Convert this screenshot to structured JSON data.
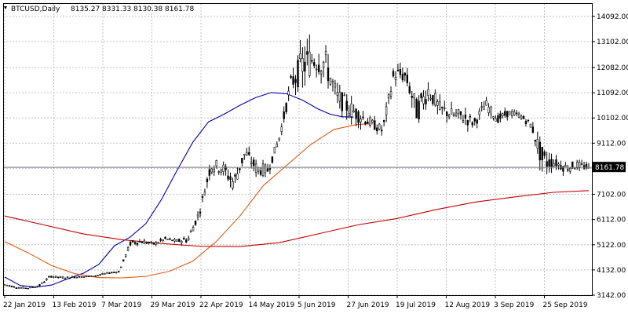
{
  "header": {
    "symbol": "BTCUSD,Daily",
    "open": "8135.27",
    "high": "8331.33",
    "low": "8130.38",
    "close": "8161.78"
  },
  "price_label": "8161.78",
  "colors": {
    "bull": "#000000",
    "bear": "#000000",
    "ma_fast": "#0000aa",
    "ma_mid": "#e05a14",
    "ma_slow": "#c00000",
    "grid": "#c0c0c0",
    "frame": "#000000"
  },
  "chart_data": {
    "type": "candlestick",
    "ylim": [
      3142,
      14580
    ],
    "x_tick_labels": [
      "22 Jan 2019",
      "13 Feb 2019",
      "7 Mar 2019",
      "29 Mar 2019",
      "22 Apr 2019",
      "14 May 2019",
      "5 Jun 2019",
      "27 Jun 2019",
      "19 Jul 2019",
      "12 Aug 2019",
      "3 Sep 2019",
      "25 Sep 2019"
    ],
    "y_tick_labels": [
      "14092.00",
      "13102.00",
      "12082.00",
      "11092.00",
      "10102.00",
      "9112.00",
      "8122.00",
      "7102.00",
      "6112.00",
      "5122.00",
      "4132.00",
      "3142.00"
    ],
    "y_ticks": [
      14092,
      13102,
      12082,
      11092,
      10102,
      9112,
      8122,
      7102,
      6112,
      5122,
      4132,
      3142
    ],
    "current_price": 8161.78,
    "ohlc_anchors": [
      [
        3570,
        3620,
        3450,
        3560
      ],
      [
        3520,
        3560,
        3430,
        3450
      ],
      [
        3460,
        3520,
        3380,
        3420
      ],
      [
        3430,
        3560,
        3400,
        3510
      ],
      [
        3830,
        3960,
        3760,
        3890
      ],
      [
        3860,
        3960,
        3790,
        3830
      ],
      [
        3800,
        3880,
        3740,
        3850
      ],
      [
        3830,
        3900,
        3790,
        3870
      ],
      [
        3880,
        3960,
        3840,
        3910
      ],
      [
        3960,
        4040,
        3910,
        4010
      ],
      [
        4000,
        4110,
        3960,
        4070
      ],
      [
        5100,
        5350,
        4900,
        5200
      ],
      [
        5150,
        5420,
        4980,
        5250
      ],
      [
        5050,
        5250,
        4950,
        5150
      ],
      [
        5220,
        5450,
        5100,
        5350
      ],
      [
        5200,
        5380,
        5080,
        5260
      ],
      [
        5700,
        5850,
        5200,
        5330
      ],
      [
        6150,
        6480,
        5850,
        6380
      ],
      [
        7650,
        8350,
        7150,
        8250
      ],
      [
        7800,
        8480,
        7350,
        8150
      ],
      [
        8350,
        8650,
        7150,
        7550
      ],
      [
        8450,
        8900,
        8000,
        8750
      ],
      [
        7700,
        8600,
        7400,
        8100
      ],
      [
        7750,
        8300,
        7400,
        8050
      ],
      [
        9100,
        9480,
        8850,
        9350
      ],
      [
        10650,
        11750,
        10300,
        11450
      ],
      [
        11550,
        13900,
        10750,
        12150
      ],
      [
        11050,
        12800,
        10250,
        12450
      ],
      [
        11450,
        13100,
        10550,
        12250
      ],
      [
        10550,
        11650,
        10000,
        10950
      ],
      [
        10150,
        10950,
        9350,
        10500
      ],
      [
        9650,
        10550,
        9150,
        10200
      ],
      [
        9550,
        10150,
        9300,
        9900
      ],
      [
        9200,
        9950,
        9000,
        9600
      ],
      [
        11550,
        12350,
        10850,
        11850
      ],
      [
        11450,
        12150,
        10950,
        11750
      ],
      [
        11050,
        11950,
        9850,
        10350
      ],
      [
        10150,
        11550,
        9850,
        11200
      ],
      [
        10200,
        11050,
        9750,
        10450
      ],
      [
        10350,
        11000,
        9850,
        10250
      ],
      [
        9800,
        10700,
        9400,
        10150
      ],
      [
        9500,
        10200,
        9300,
        9900
      ],
      [
        10450,
        10950,
        10050,
        10650
      ],
      [
        10400,
        10650,
        9950,
        10050
      ],
      [
        10250,
        10600,
        10000,
        10300
      ],
      [
        10100,
        10400,
        9950,
        10200
      ],
      [
        10050,
        10300,
        9650,
        9800
      ],
      [
        9650,
        10050,
        7800,
        8400
      ],
      [
        8150,
        8550,
        7780,
        8350
      ],
      [
        8200,
        8600,
        7700,
        8150
      ],
      [
        8150,
        8500,
        7800,
        8250
      ],
      [
        8150,
        8400,
        7900,
        8161.78
      ]
    ],
    "x_label_count": 12,
    "bars_total": 252,
    "series": [
      {
        "name": "MA fast",
        "color": "#0000aa",
        "anchors": [
          [
            0,
            3850
          ],
          [
            20,
            3520
          ],
          [
            40,
            3460
          ],
          [
            60,
            3540
          ],
          [
            80,
            3780
          ],
          [
            100,
            4000
          ],
          [
            120,
            4350
          ],
          [
            140,
            5080
          ],
          [
            160,
            5420
          ],
          [
            180,
            5950
          ],
          [
            200,
            6900
          ],
          [
            220,
            8050
          ],
          [
            240,
            9150
          ],
          [
            260,
            9950
          ],
          [
            280,
            10250
          ],
          [
            300,
            10600
          ],
          [
            320,
            10900
          ],
          [
            340,
            11100
          ],
          [
            360,
            11050
          ],
          [
            380,
            10800
          ],
          [
            400,
            10450
          ],
          [
            415,
            10250
          ],
          [
            430,
            10150
          ],
          [
            445,
            10130
          ]
        ]
      },
      {
        "name": "MA mid",
        "color": "#e05a14",
        "anchors": [
          [
            0,
            5250
          ],
          [
            30,
            4800
          ],
          [
            60,
            4300
          ],
          [
            90,
            3980
          ],
          [
            120,
            3830
          ],
          [
            150,
            3820
          ],
          [
            180,
            3880
          ],
          [
            210,
            4080
          ],
          [
            240,
            4480
          ],
          [
            270,
            5250
          ],
          [
            300,
            6250
          ],
          [
            330,
            7450
          ],
          [
            360,
            8250
          ],
          [
            390,
            9050
          ],
          [
            420,
            9650
          ],
          [
            450,
            9850
          ],
          [
            470,
            9870
          ]
        ]
      },
      {
        "name": "MA slow",
        "color": "#c00000",
        "anchors": [
          [
            0,
            6250
          ],
          [
            50,
            5900
          ],
          [
            100,
            5550
          ],
          [
            150,
            5320
          ],
          [
            200,
            5170
          ],
          [
            250,
            5060
          ],
          [
            300,
            5050
          ],
          [
            350,
            5200
          ],
          [
            400,
            5550
          ],
          [
            450,
            5900
          ],
          [
            500,
            6150
          ],
          [
            550,
            6500
          ],
          [
            600,
            6800
          ],
          [
            650,
            7000
          ],
          [
            700,
            7180
          ],
          [
            745,
            7250
          ]
        ]
      }
    ]
  }
}
